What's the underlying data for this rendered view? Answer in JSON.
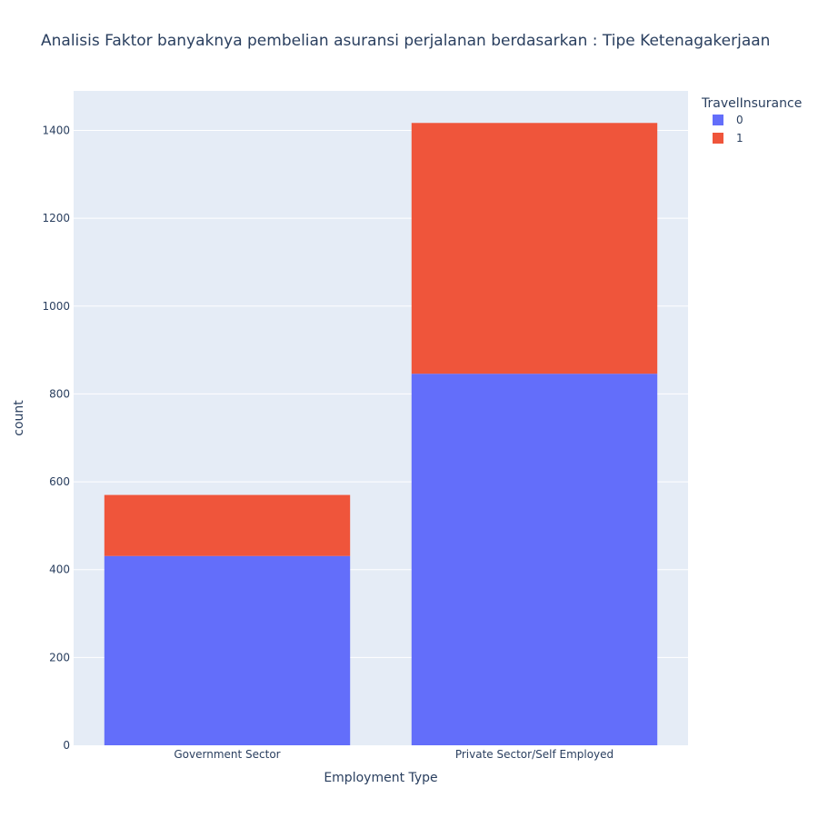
{
  "chart_data": {
    "type": "bar",
    "stacked": true,
    "title": "Analisis Faktor banyaknya pembelian asuransi perjalanan berdasarkan : Tipe Ketenagakerjaan",
    "xlabel": "Employment Type",
    "ylabel": "count",
    "categories": [
      "Government Sector",
      "Private Sector/Self Employed"
    ],
    "series": [
      {
        "name": "0",
        "values": [
          431,
          846
        ],
        "color": "#636efa"
      },
      {
        "name": "1",
        "values": [
          139,
          571
        ],
        "color": "#ef553b"
      }
    ],
    "ylim": [
      0,
      1490
    ],
    "yticks": [
      0,
      200,
      400,
      600,
      800,
      1000,
      1200,
      1400
    ],
    "grid": true,
    "plot_background": "#e5ecf6",
    "legend": {
      "title": "TravelInsurance",
      "placement": "top-right"
    }
  }
}
